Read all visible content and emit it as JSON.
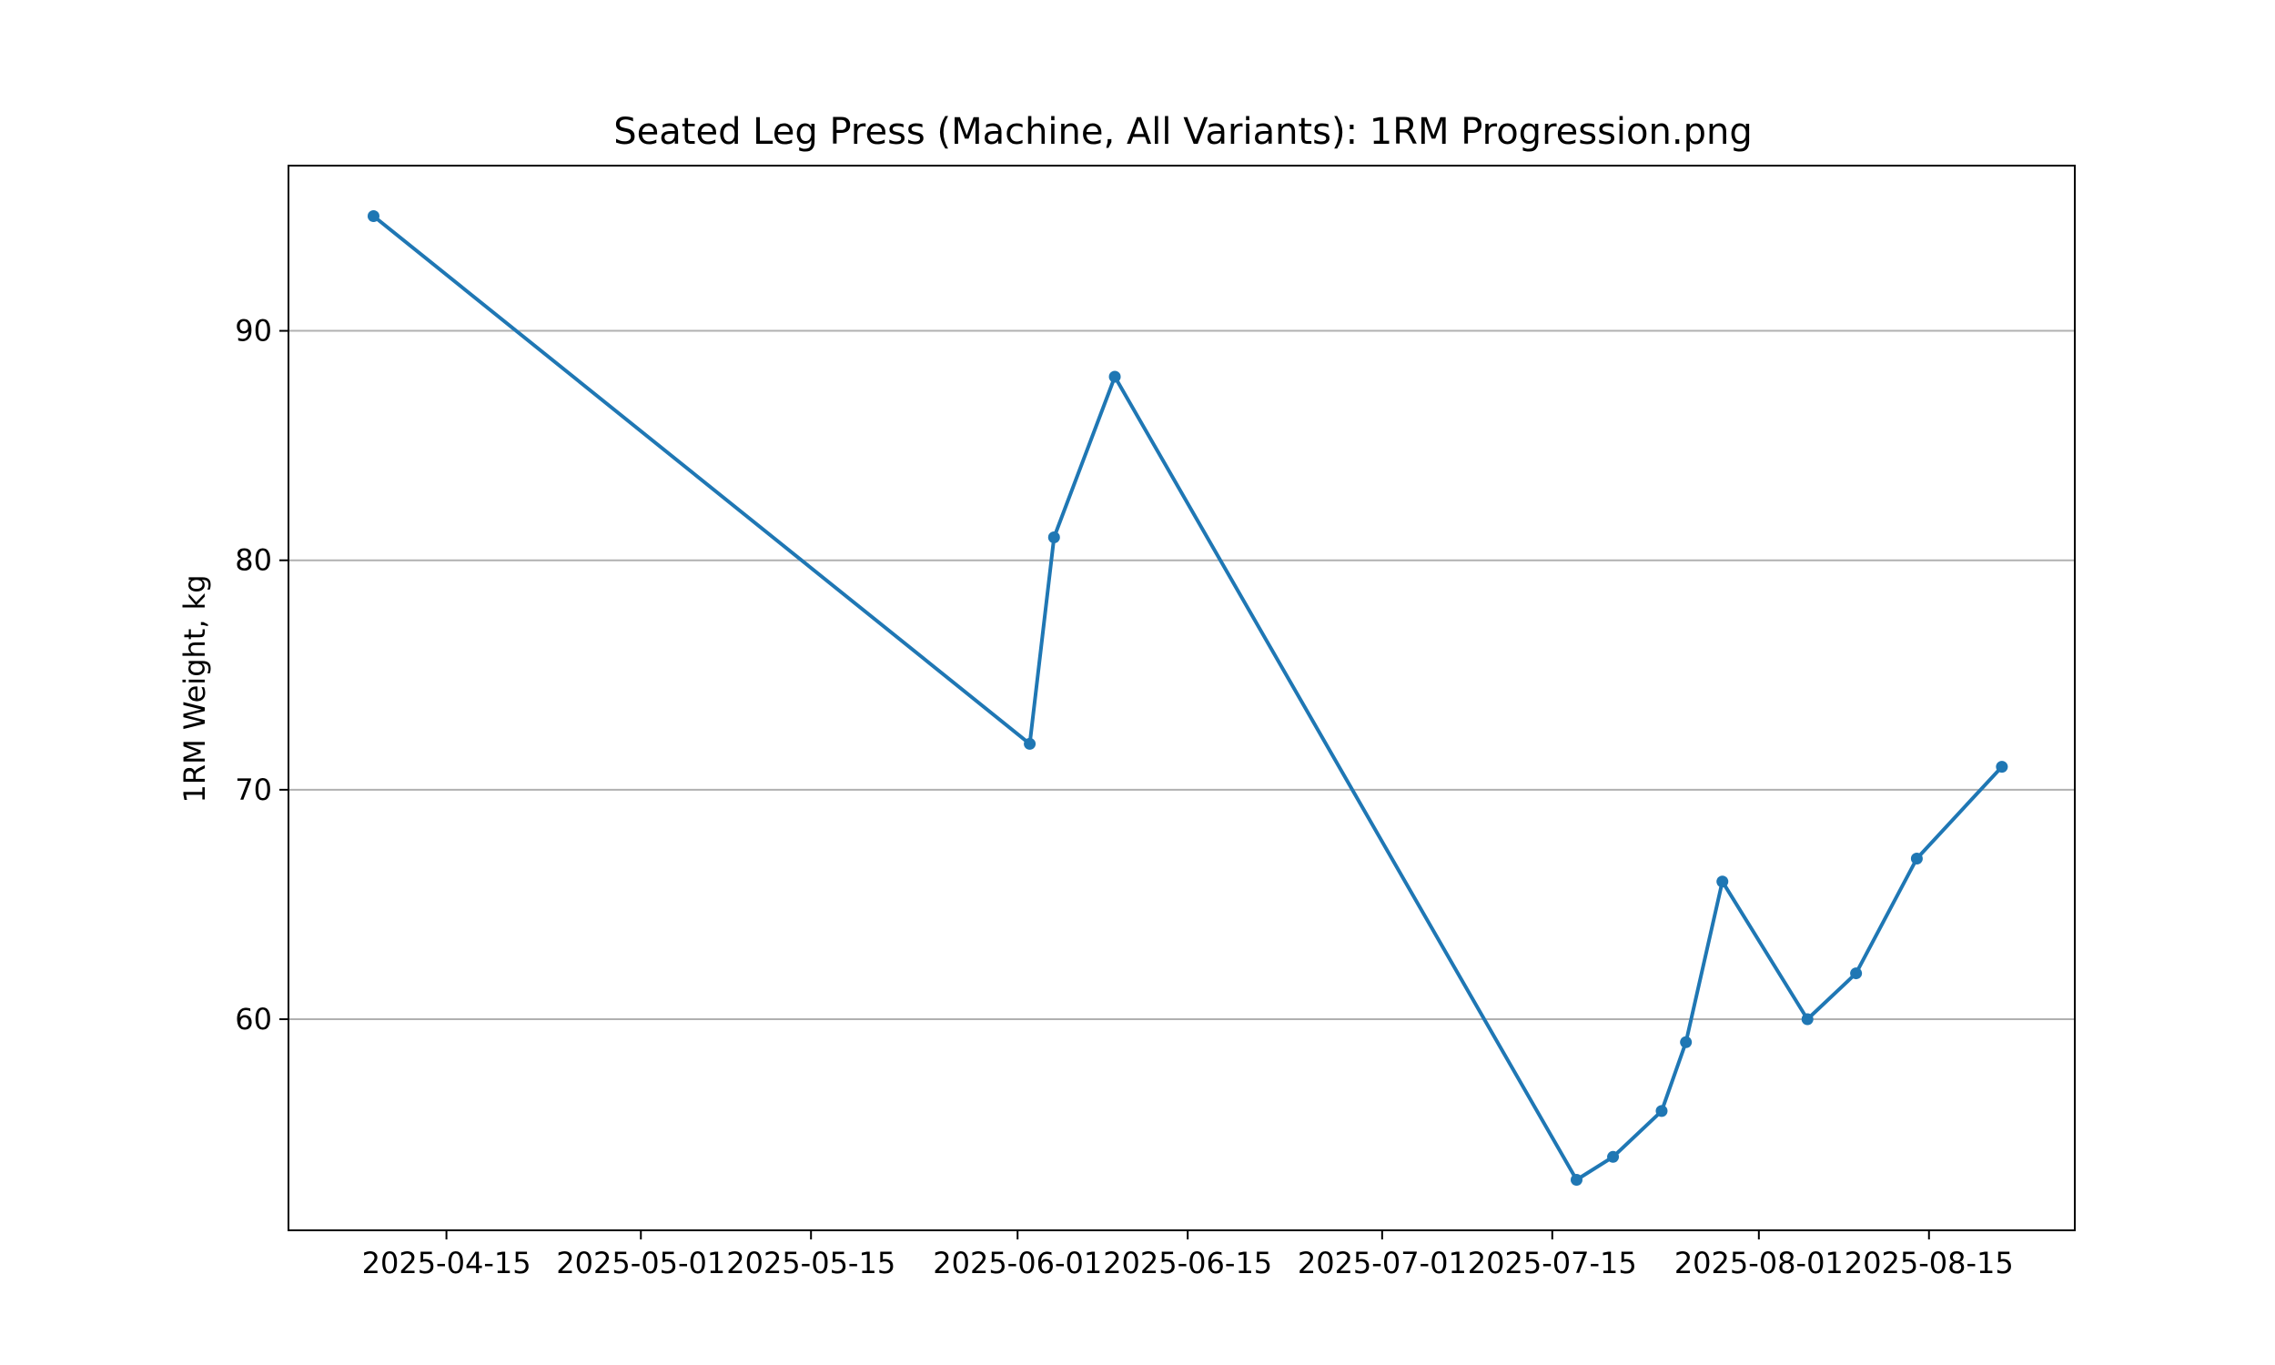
{
  "chart_data": {
    "type": "line",
    "title": "Seated Leg Press (Machine, All Variants): 1RM Progression.png",
    "xlabel": "",
    "ylabel": "1RM Weight, kg",
    "x_type": "date",
    "xlim": [
      "2025-04-02",
      "2025-08-27"
    ],
    "ylim": [
      50.8,
      97.2
    ],
    "x_ticks": [
      "2025-04-15",
      "2025-05-01",
      "2025-05-15",
      "2025-06-01",
      "2025-06-15",
      "2025-07-01",
      "2025-07-15",
      "2025-08-01",
      "2025-08-15"
    ],
    "y_ticks": [
      60,
      70,
      80,
      90
    ],
    "grid": "y",
    "legend": "none",
    "series": [
      {
        "color": "#1f77b4",
        "points": [
          {
            "x": "2025-04-09",
            "y": 95
          },
          {
            "x": "2025-06-02",
            "y": 72
          },
          {
            "x": "2025-06-04",
            "y": 81
          },
          {
            "x": "2025-06-09",
            "y": 88
          },
          {
            "x": "2025-07-17",
            "y": 53
          },
          {
            "x": "2025-07-20",
            "y": 54
          },
          {
            "x": "2025-07-24",
            "y": 56
          },
          {
            "x": "2025-07-26",
            "y": 59
          },
          {
            "x": "2025-07-29",
            "y": 66
          },
          {
            "x": "2025-08-05",
            "y": 60
          },
          {
            "x": "2025-08-09",
            "y": 62
          },
          {
            "x": "2025-08-14",
            "y": 67
          },
          {
            "x": "2025-08-21",
            "y": 71
          }
        ]
      }
    ]
  }
}
